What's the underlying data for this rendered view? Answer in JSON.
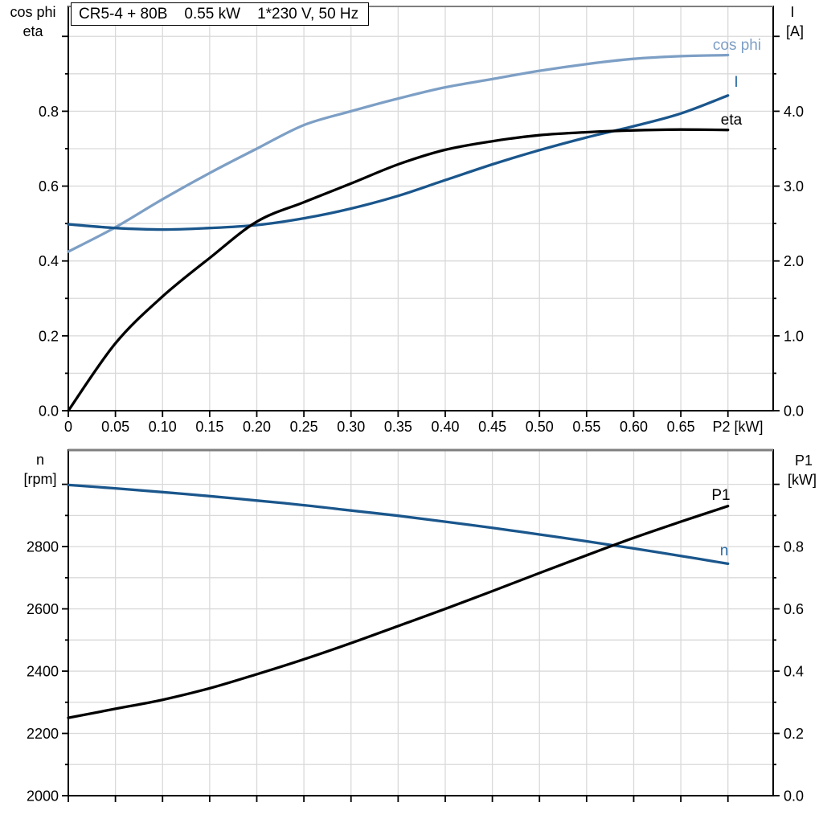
{
  "colors": {
    "background": "#ffffff",
    "grid": "#d9d9d9",
    "frame": "#000000",
    "frame_top_gray": "#7f7f7f",
    "light_blue": "#7d9fc5",
    "dark_blue": "#1a568c",
    "blue_label": "#2d6da6",
    "black": "#000000"
  },
  "title_box": {
    "model": "CR5-4 + 80B",
    "power": "0.55 kW",
    "supply": "1*230 V, 50 Hz"
  },
  "chart_data": [
    {
      "id": "top",
      "type": "line",
      "title": "CR5-4 + 80B  0.55 kW  1*230 V, 50 Hz",
      "x_axis": {
        "range": [
          0,
          0.748
        ],
        "ticks": [
          0,
          0.05,
          0.1,
          0.15,
          0.2,
          0.25,
          0.3,
          0.35,
          0.4,
          0.45,
          0.5,
          0.55,
          0.6,
          0.65,
          0.7
        ],
        "tick_labels": [
          "0",
          "0.05",
          "0.10",
          "0.15",
          "0.20",
          "0.25",
          "0.30",
          "0.35",
          "0.40",
          "0.45",
          "0.50",
          "0.55",
          "0.60",
          "0.65",
          ""
        ],
        "unit_label": "P2 [kW]"
      },
      "left_axis": {
        "title_lines": [
          "cos phi",
          "eta"
        ],
        "range": [
          0,
          1.08
        ],
        "label_values": [
          0,
          0.2,
          0.4,
          0.6,
          0.8
        ],
        "labels": [
          "0.0",
          "0.2",
          "0.4",
          "0.6",
          "0.8"
        ],
        "major_values": [
          0,
          0.2,
          0.4,
          0.6,
          0.8,
          1.0
        ],
        "minor_values": [
          0.1,
          0.3,
          0.5,
          0.7,
          0.9
        ],
        "grid_values": [
          0.1,
          0.2,
          0.3,
          0.4,
          0.5,
          0.6,
          0.7,
          0.8,
          0.9,
          1.0
        ]
      },
      "right_axis": {
        "title_lines": [
          "I",
          "[A]"
        ],
        "range": [
          0,
          5.4
        ],
        "label_values": [
          0,
          1,
          2,
          3,
          4
        ],
        "labels": [
          "0.0",
          "1.0",
          "2.0",
          "3.0",
          "4.0"
        ],
        "major_values": [
          0,
          1,
          2,
          3,
          4,
          5
        ],
        "minor_values": [
          0.5,
          1.5,
          2.5,
          3.5,
          4.5
        ]
      },
      "x": [
        0,
        0.05,
        0.1,
        0.15,
        0.2,
        0.25,
        0.3,
        0.35,
        0.4,
        0.45,
        0.5,
        0.55,
        0.6,
        0.65,
        0.7
      ],
      "series": [
        {
          "name": "cos phi",
          "axis": "left",
          "color": "#7d9fc5",
          "label_color": "#7d9fc5",
          "values": [
            0.425,
            0.49,
            0.565,
            0.635,
            0.7,
            0.763,
            0.8,
            0.834,
            0.864,
            0.886,
            0.908,
            0.926,
            0.94,
            0.947,
            0.95
          ]
        },
        {
          "name": "I",
          "axis": "right",
          "color": "#1a568c",
          "label_color": "#2d6da6",
          "values": [
            2.49,
            2.44,
            2.42,
            2.44,
            2.48,
            2.57,
            2.7,
            2.87,
            3.08,
            3.29,
            3.48,
            3.65,
            3.8,
            3.97,
            4.21
          ]
        },
        {
          "name": "eta",
          "axis": "left",
          "color": "#000000",
          "label_color": "#000000",
          "values": [
            0.0,
            0.18,
            0.305,
            0.408,
            0.505,
            0.557,
            0.607,
            0.658,
            0.697,
            0.72,
            0.736,
            0.744,
            0.749,
            0.751,
            0.75
          ]
        }
      ]
    },
    {
      "id": "bottom",
      "type": "line",
      "x_axis": {
        "range": [
          0,
          0.748
        ],
        "ticks": [
          0,
          0.05,
          0.1,
          0.15,
          0.2,
          0.25,
          0.3,
          0.35,
          0.4,
          0.45,
          0.5,
          0.55,
          0.6,
          0.65,
          0.7
        ],
        "tick_labels": [],
        "unit_label": ""
      },
      "left_axis": {
        "title_lines": [
          "n",
          "[rpm]"
        ],
        "range": [
          2000,
          3110
        ],
        "label_values": [
          2000,
          2200,
          2400,
          2600,
          2800
        ],
        "labels": [
          "2000",
          "2200",
          "2400",
          "2600",
          "2800"
        ],
        "major_values": [
          2000,
          2200,
          2400,
          2600,
          2800,
          3000
        ],
        "minor_values": [
          2100,
          2300,
          2500,
          2700,
          2900
        ],
        "grid_values": [
          2100,
          2200,
          2300,
          2400,
          2500,
          2600,
          2700,
          2800,
          2900,
          3000
        ]
      },
      "right_axis": {
        "title_lines": [
          "P1",
          "[kW]"
        ],
        "range": [
          0,
          1.11
        ],
        "label_values": [
          0,
          0.2,
          0.4,
          0.6,
          0.8
        ],
        "labels": [
          "0.0",
          "0.2",
          "0.4",
          "0.6",
          "0.8"
        ],
        "major_values": [
          0,
          0.2,
          0.4,
          0.6,
          0.8,
          1.0
        ],
        "minor_values": [
          0.1,
          0.3,
          0.5,
          0.7,
          0.9
        ]
      },
      "x": [
        0,
        0.05,
        0.1,
        0.15,
        0.2,
        0.25,
        0.3,
        0.35,
        0.4,
        0.45,
        0.5,
        0.55,
        0.6,
        0.65,
        0.7
      ],
      "series": [
        {
          "name": "n",
          "axis": "left",
          "color": "#1a568c",
          "label_color": "#2d6da6",
          "values": [
            2998,
            2987,
            2975,
            2962,
            2948,
            2933,
            2916,
            2899,
            2880,
            2860,
            2839,
            2817,
            2794,
            2770,
            2745
          ]
        },
        {
          "name": "P1",
          "axis": "right",
          "color": "#000000",
          "label_color": "#000000",
          "values": [
            0.25,
            0.279,
            0.308,
            0.345,
            0.39,
            0.438,
            0.49,
            0.545,
            0.6,
            0.657,
            0.715,
            0.772,
            0.828,
            0.88,
            0.93
          ]
        }
      ]
    }
  ]
}
